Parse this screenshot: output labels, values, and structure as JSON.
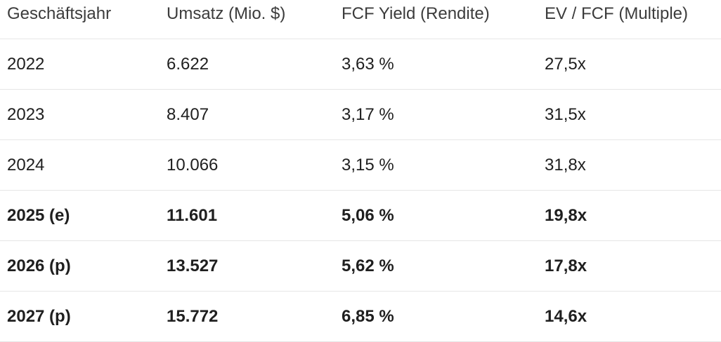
{
  "table": {
    "header": [
      "Geschäftsjahr",
      "Umsatz (Mio. $)",
      "FCF Yield (Rendite)",
      "EV / FCF (Multiple)"
    ],
    "rows": [
      [
        "2022",
        "6.622",
        "3,63 %",
        "27,5x"
      ],
      [
        "2023",
        "8.407",
        "3,17 %",
        "31,5x"
      ],
      [
        "2024",
        "10.066",
        "3,15 %",
        "31,8x"
      ],
      [
        "2025 (e)",
        "11.601",
        "5,06 %",
        "19,8x"
      ],
      [
        "2026 (p)",
        "13.527",
        "5,62 %",
        "17,8x"
      ],
      [
        "2027 (p)",
        "15.772",
        "6,85 %",
        "14,6x"
      ]
    ]
  }
}
